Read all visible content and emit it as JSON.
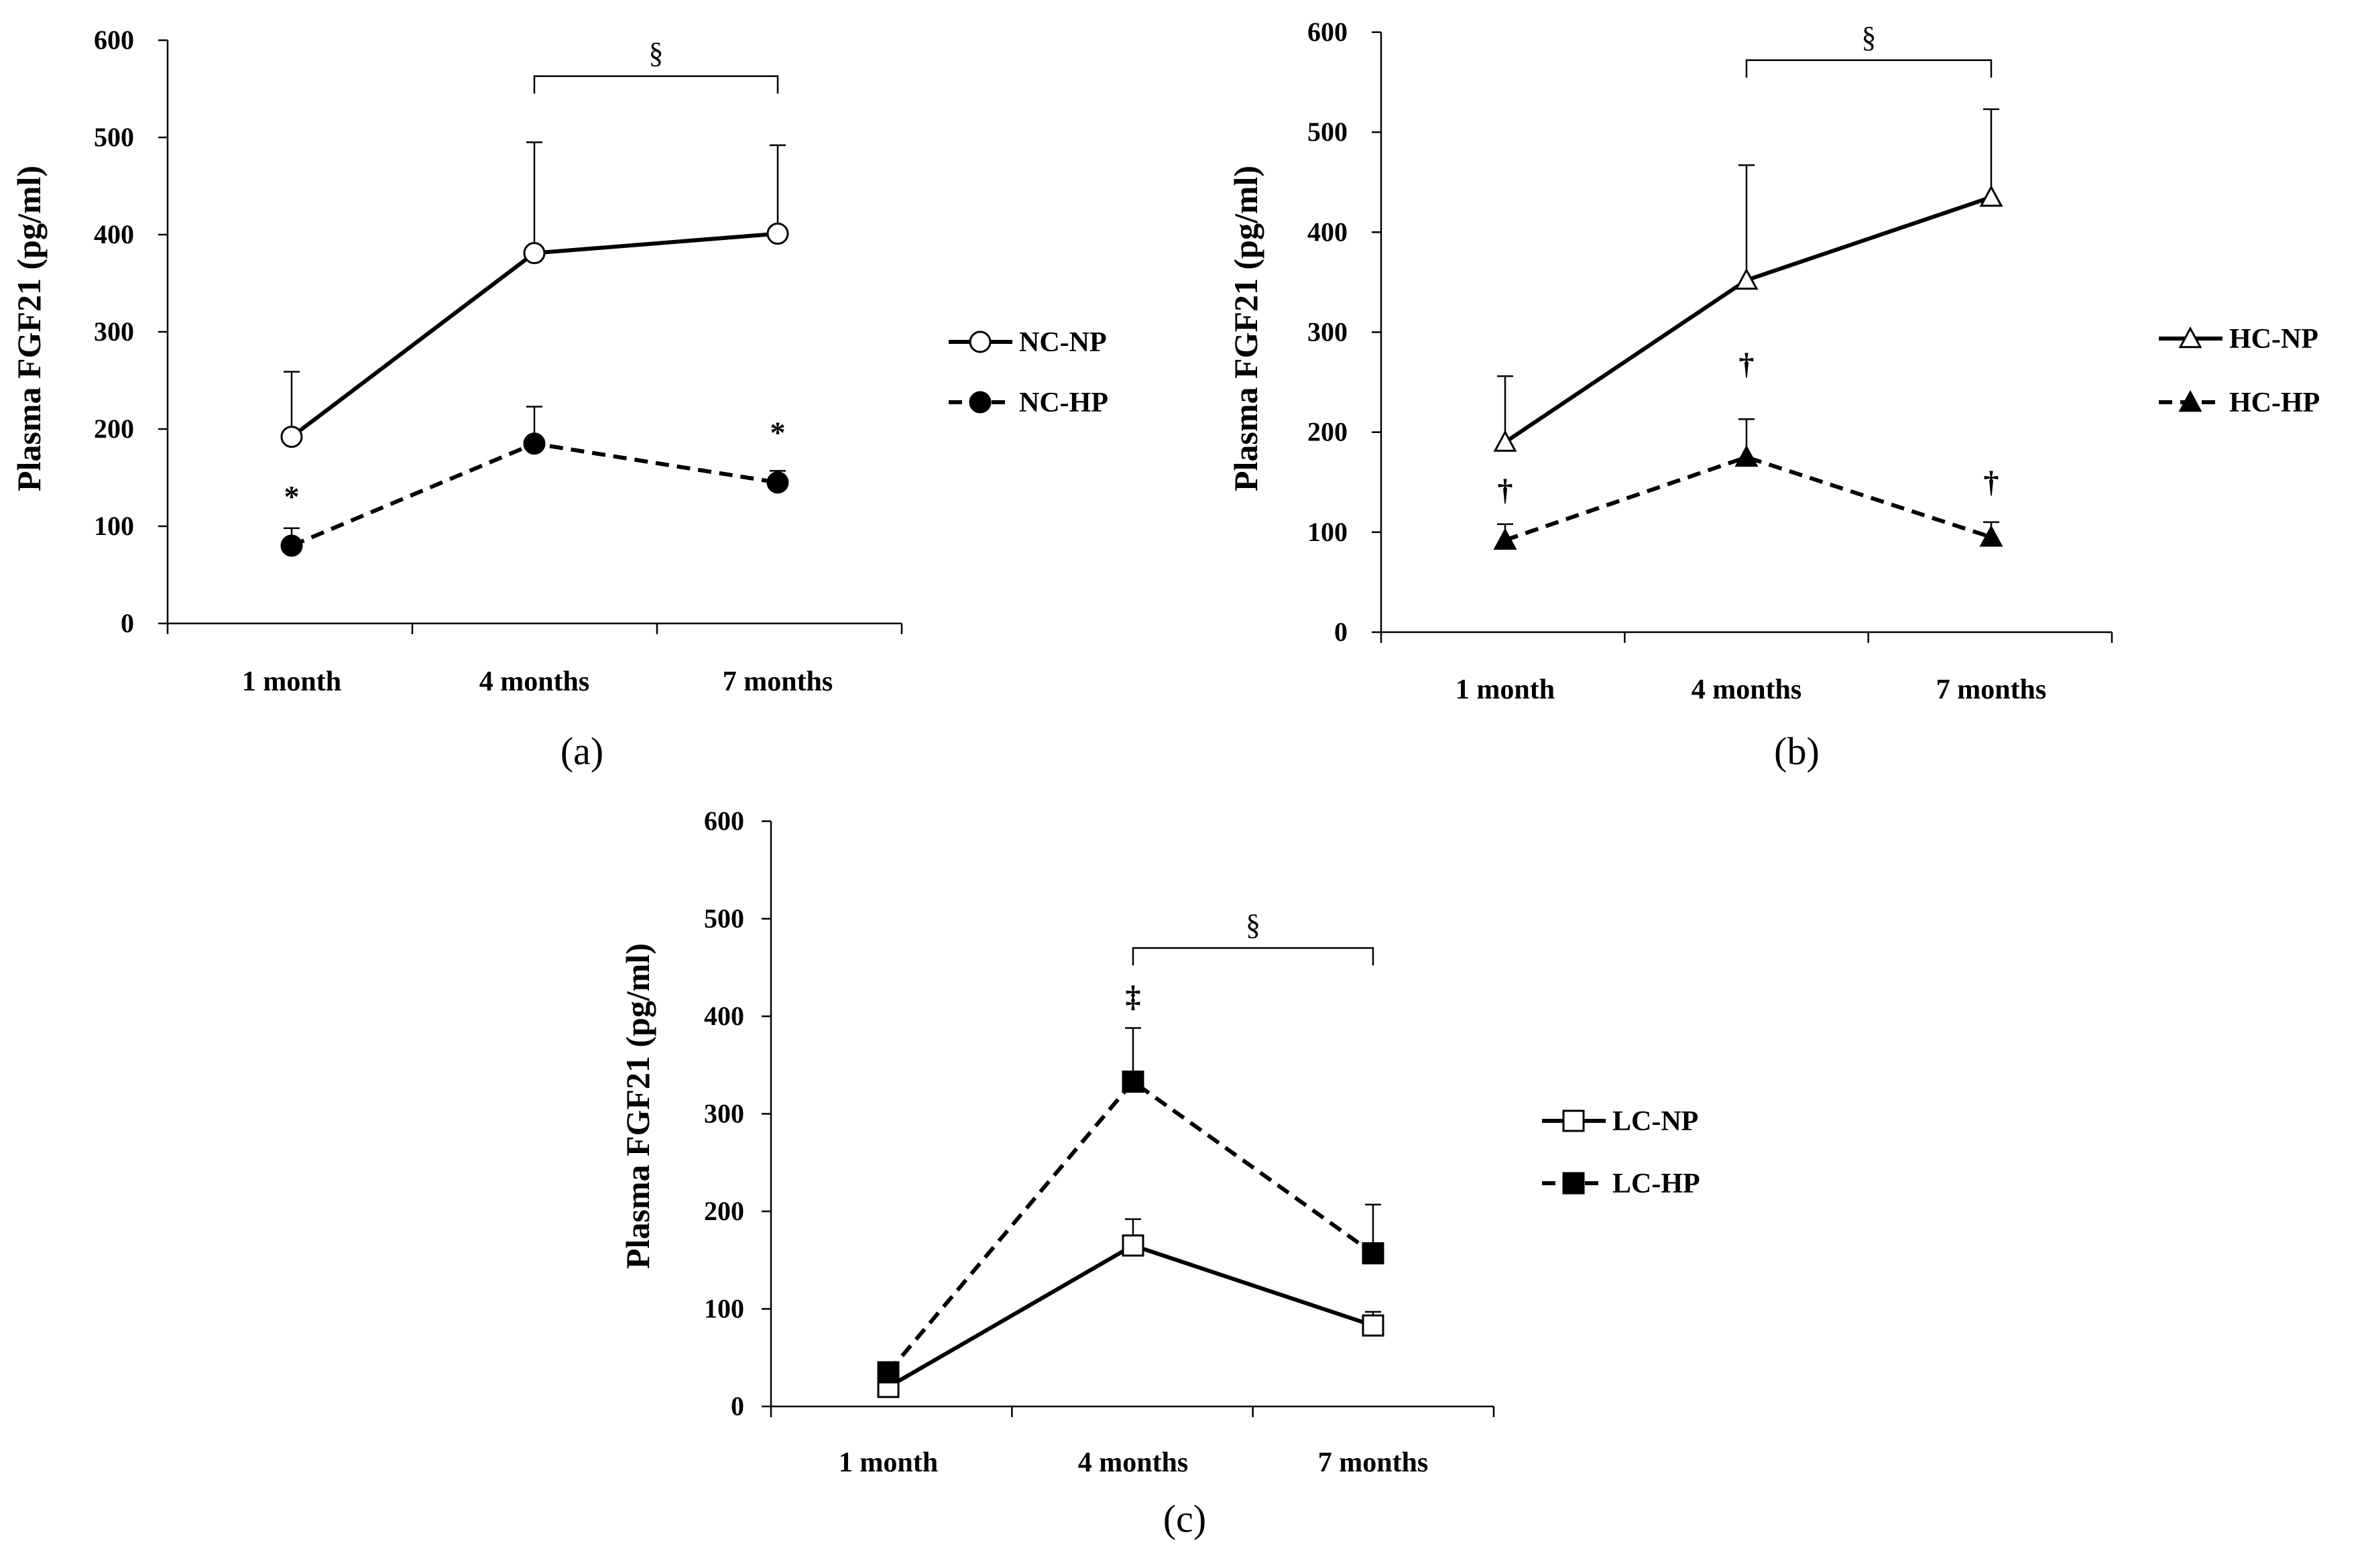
{
  "chart_data": [
    {
      "type": "line",
      "panel_label": "(a)",
      "ylabel": "Plasma FGF21 (pg/ml)",
      "categories": [
        "1 month",
        "4 months",
        "7 months"
      ],
      "yticks": [
        0,
        100,
        200,
        300,
        400,
        500,
        600
      ],
      "ylim": [
        0,
        600
      ],
      "series": [
        {
          "name": "NC-NP",
          "line": "solid",
          "marker": "circle",
          "filled": false,
          "values": [
            192,
            381,
            401
          ],
          "errors": [
            67,
            114,
            91
          ]
        },
        {
          "name": "NC-HP",
          "line": "dashed",
          "marker": "circle",
          "filled": true,
          "values": [
            80,
            185,
            145
          ],
          "errors": [
            18,
            38,
            12
          ]
        }
      ],
      "bracket": {
        "label": "§",
        "from": 1,
        "to": 2,
        "y": 563
      },
      "annotations": [
        {
          "text": "*",
          "x": 0,
          "y": 120
        },
        {
          "text": "*",
          "x": 2,
          "y": 186
        }
      ],
      "legend_position": "right"
    },
    {
      "type": "line",
      "panel_label": "(b)",
      "ylabel": "Plasma FGF21 (pg/ml)",
      "categories": [
        "1 month",
        "4 months",
        "7 months"
      ],
      "yticks": [
        0,
        100,
        200,
        300,
        400,
        500,
        600
      ],
      "ylim": [
        0,
        600
      ],
      "series": [
        {
          "name": "HC-NP",
          "line": "solid",
          "marker": "triangle",
          "filled": false,
          "values": [
            190,
            352,
            435
          ],
          "errors": [
            66,
            115,
            88
          ]
        },
        {
          "name": "HC-HP",
          "line": "dashed",
          "marker": "triangle",
          "filled": true,
          "values": [
            92,
            175,
            95
          ],
          "errors": [
            16,
            38,
            15
          ]
        }
      ],
      "bracket": {
        "label": "§",
        "from": 1,
        "to": 2,
        "y": 572
      },
      "annotations": [
        {
          "text": "†",
          "x": 0,
          "y": 132
        },
        {
          "text": "†",
          "x": 1,
          "y": 258
        },
        {
          "text": "†",
          "x": 2,
          "y": 140
        }
      ],
      "legend_position": "right"
    },
    {
      "type": "line",
      "panel_label": "(c)",
      "ylabel": "Plasma FGF21 (pg/ml)",
      "categories": [
        "1 month",
        "4 months",
        "7 months"
      ],
      "yticks": [
        0,
        100,
        200,
        300,
        400,
        500,
        600
      ],
      "ylim": [
        0,
        600
      ],
      "series": [
        {
          "name": "LC-NP",
          "line": "solid",
          "marker": "square",
          "filled": false,
          "values": [
            20,
            165,
            83
          ],
          "errors": [
            0,
            27,
            14
          ]
        },
        {
          "name": "LC-HP",
          "line": "dashed",
          "marker": "square",
          "filled": true,
          "values": [
            35,
            333,
            157
          ],
          "errors": [
            0,
            55,
            50
          ]
        }
      ],
      "bracket": {
        "label": "§",
        "from": 1,
        "to": 2,
        "y": 470
      },
      "annotations": [
        {
          "text": "‡",
          "x": 1,
          "y": 410
        }
      ],
      "legend_position": "right"
    }
  ]
}
